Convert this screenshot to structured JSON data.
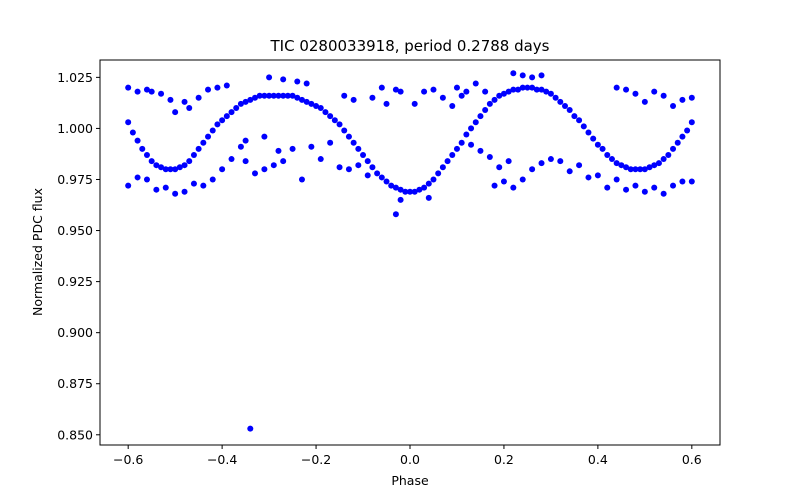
{
  "chart_data": {
    "type": "scatter",
    "title": "TIC 0280033918, period 0.2788 days",
    "xlabel": "Phase",
    "ylabel": "Normalized PDC flux",
    "xlim": [
      -0.66,
      0.66
    ],
    "ylim": [
      0.845,
      1.0335
    ],
    "grid": false,
    "x_ticks": [
      -0.6,
      -0.4,
      -0.2,
      0.0,
      0.2,
      0.4,
      0.6
    ],
    "x_tick_labels": [
      "−0.6",
      "−0.4",
      "−0.2",
      "0.0",
      "0.2",
      "0.4",
      "0.6"
    ],
    "y_ticks": [
      0.85,
      0.875,
      0.9,
      0.925,
      0.95,
      0.975,
      1.0,
      1.025
    ],
    "y_tick_labels": [
      "0.850",
      "0.875",
      "0.900",
      "0.925",
      "0.950",
      "0.975",
      "1.000",
      "1.025"
    ],
    "marker_color": "#0000ff",
    "series": [
      {
        "points": [
          [
            -0.6,
            1.003
          ],
          [
            -0.59,
            0.998
          ],
          [
            -0.58,
            0.994
          ],
          [
            -0.57,
            0.99
          ],
          [
            -0.56,
            0.987
          ],
          [
            -0.55,
            0.984
          ],
          [
            -0.54,
            0.982
          ],
          [
            -0.53,
            0.981
          ],
          [
            -0.52,
            0.98
          ],
          [
            -0.51,
            0.98
          ],
          [
            -0.5,
            0.98
          ],
          [
            -0.49,
            0.981
          ],
          [
            -0.48,
            0.982
          ],
          [
            -0.47,
            0.984
          ],
          [
            -0.46,
            0.987
          ],
          [
            -0.45,
            0.99
          ],
          [
            -0.44,
            0.993
          ],
          [
            -0.43,
            0.996
          ],
          [
            -0.42,
            0.999
          ],
          [
            -0.41,
            1.002
          ],
          [
            -0.4,
            1.004
          ],
          [
            -0.39,
            1.006
          ],
          [
            -0.38,
            1.008
          ],
          [
            -0.37,
            1.01
          ],
          [
            -0.36,
            1.012
          ],
          [
            -0.35,
            1.013
          ],
          [
            -0.34,
            1.014
          ],
          [
            -0.33,
            1.015
          ],
          [
            -0.32,
            1.016
          ],
          [
            -0.31,
            1.016
          ],
          [
            -0.3,
            1.016
          ],
          [
            -0.29,
            1.016
          ],
          [
            -0.28,
            1.016
          ],
          [
            -0.27,
            1.016
          ],
          [
            -0.26,
            1.016
          ],
          [
            -0.25,
            1.016
          ],
          [
            -0.24,
            1.015
          ],
          [
            -0.23,
            1.014
          ],
          [
            -0.22,
            1.013
          ],
          [
            -0.21,
            1.012
          ],
          [
            -0.2,
            1.011
          ],
          [
            -0.19,
            1.01
          ],
          [
            -0.18,
            1.008
          ],
          [
            -0.17,
            1.006
          ],
          [
            -0.16,
            1.004
          ],
          [
            -0.15,
            1.002
          ],
          [
            -0.14,
            0.999
          ],
          [
            -0.13,
            0.996
          ],
          [
            -0.12,
            0.993
          ],
          [
            -0.11,
            0.99
          ],
          [
            -0.1,
            0.987
          ],
          [
            -0.09,
            0.984
          ],
          [
            -0.08,
            0.981
          ],
          [
            -0.07,
            0.978
          ],
          [
            -0.06,
            0.976
          ],
          [
            -0.05,
            0.974
          ],
          [
            -0.04,
            0.972
          ],
          [
            -0.03,
            0.971
          ],
          [
            -0.02,
            0.97
          ],
          [
            -0.01,
            0.969
          ],
          [
            0.0,
            0.969
          ],
          [
            0.01,
            0.969
          ],
          [
            0.02,
            0.97
          ],
          [
            0.03,
            0.971
          ],
          [
            0.04,
            0.973
          ],
          [
            0.05,
            0.975
          ],
          [
            0.06,
            0.978
          ],
          [
            0.07,
            0.981
          ],
          [
            0.08,
            0.984
          ],
          [
            0.09,
            0.987
          ],
          [
            0.1,
            0.99
          ],
          [
            0.11,
            0.993
          ],
          [
            0.12,
            0.997
          ],
          [
            0.13,
            1.0
          ],
          [
            0.14,
            1.003
          ],
          [
            0.15,
            1.006
          ],
          [
            0.16,
            1.009
          ],
          [
            0.17,
            1.012
          ],
          [
            0.18,
            1.014
          ],
          [
            0.19,
            1.016
          ],
          [
            0.2,
            1.017
          ],
          [
            0.21,
            1.018
          ],
          [
            0.22,
            1.019
          ],
          [
            0.23,
            1.019
          ],
          [
            0.24,
            1.02
          ],
          [
            0.25,
            1.02
          ],
          [
            0.26,
            1.02
          ],
          [
            0.27,
            1.019
          ],
          [
            0.28,
            1.019
          ],
          [
            0.29,
            1.018
          ],
          [
            0.3,
            1.017
          ],
          [
            0.31,
            1.015
          ],
          [
            0.32,
            1.013
          ],
          [
            0.33,
            1.011
          ],
          [
            0.34,
            1.009
          ],
          [
            0.35,
            1.006
          ],
          [
            0.36,
            1.004
          ],
          [
            0.37,
            1.001
          ],
          [
            0.38,
            0.998
          ],
          [
            0.39,
            0.995
          ],
          [
            0.4,
            0.992
          ],
          [
            0.41,
            0.99
          ],
          [
            0.42,
            0.987
          ],
          [
            0.43,
            0.985
          ],
          [
            0.44,
            0.983
          ],
          [
            0.45,
            0.982
          ],
          [
            0.46,
            0.981
          ],
          [
            0.47,
            0.98
          ],
          [
            0.48,
            0.98
          ],
          [
            0.49,
            0.98
          ],
          [
            0.5,
            0.98
          ],
          [
            0.51,
            0.981
          ],
          [
            0.52,
            0.982
          ],
          [
            0.53,
            0.983
          ],
          [
            0.54,
            0.985
          ],
          [
            0.55,
            0.987
          ],
          [
            0.56,
            0.99
          ],
          [
            0.57,
            0.993
          ],
          [
            0.58,
            0.996
          ],
          [
            0.59,
            0.999
          ],
          [
            0.6,
            1.003
          ],
          [
            -0.6,
            1.02
          ],
          [
            -0.58,
            1.018
          ],
          [
            -0.56,
            1.019
          ],
          [
            -0.55,
            1.018
          ],
          [
            -0.53,
            1.017
          ],
          [
            -0.51,
            1.014
          ],
          [
            -0.5,
            1.008
          ],
          [
            -0.48,
            1.013
          ],
          [
            -0.47,
            1.01
          ],
          [
            -0.45,
            1.015
          ],
          [
            -0.43,
            1.019
          ],
          [
            -0.41,
            1.02
          ],
          [
            -0.39,
            1.021
          ],
          [
            -0.6,
            0.972
          ],
          [
            -0.58,
            0.976
          ],
          [
            -0.56,
            0.975
          ],
          [
            -0.54,
            0.97
          ],
          [
            -0.52,
            0.971
          ],
          [
            -0.5,
            0.968
          ],
          [
            -0.48,
            0.969
          ],
          [
            -0.46,
            0.973
          ],
          [
            -0.44,
            0.972
          ],
          [
            -0.42,
            0.975
          ],
          [
            -0.4,
            0.98
          ],
          [
            -0.38,
            0.985
          ],
          [
            -0.36,
            0.991
          ],
          [
            -0.35,
            0.984
          ],
          [
            -0.33,
            0.978
          ],
          [
            -0.31,
            0.98
          ],
          [
            -0.29,
            0.982
          ],
          [
            -0.27,
            0.984
          ],
          [
            -0.25,
            0.99
          ],
          [
            -0.23,
            0.975
          ],
          [
            -0.21,
            0.991
          ],
          [
            -0.19,
            0.985
          ],
          [
            -0.17,
            0.993
          ],
          [
            -0.15,
            0.981
          ],
          [
            -0.13,
            0.98
          ],
          [
            -0.11,
            0.982
          ],
          [
            -0.09,
            0.977
          ],
          [
            -0.08,
            1.015
          ],
          [
            -0.06,
            1.02
          ],
          [
            -0.05,
            1.012
          ],
          [
            -0.03,
            1.019
          ],
          [
            -0.02,
            1.018
          ],
          [
            0.01,
            1.012
          ],
          [
            0.03,
            1.018
          ],
          [
            0.05,
            1.019
          ],
          [
            0.07,
            1.015
          ],
          [
            0.09,
            1.011
          ],
          [
            0.1,
            1.02
          ],
          [
            0.11,
            1.016
          ],
          [
            0.12,
            1.018
          ],
          [
            0.14,
            1.022
          ],
          [
            0.16,
            1.018
          ],
          [
            0.18,
            0.972
          ],
          [
            0.2,
            0.974
          ],
          [
            0.22,
            0.971
          ],
          [
            0.24,
            0.975
          ],
          [
            0.26,
            0.98
          ],
          [
            0.28,
            0.983
          ],
          [
            0.3,
            0.985
          ],
          [
            0.32,
            0.984
          ],
          [
            0.34,
            0.979
          ],
          [
            0.36,
            0.982
          ],
          [
            0.38,
            0.976
          ],
          [
            0.4,
            0.977
          ],
          [
            0.42,
            0.971
          ],
          [
            0.44,
            0.975
          ],
          [
            0.46,
            0.97
          ],
          [
            0.48,
            0.972
          ],
          [
            0.5,
            0.969
          ],
          [
            0.52,
            0.971
          ],
          [
            0.54,
            0.968
          ],
          [
            0.56,
            0.972
          ],
          [
            0.58,
            0.974
          ],
          [
            0.6,
            0.974
          ],
          [
            0.44,
            1.02
          ],
          [
            0.46,
            1.019
          ],
          [
            0.48,
            1.017
          ],
          [
            0.5,
            1.013
          ],
          [
            0.52,
            1.018
          ],
          [
            0.54,
            1.016
          ],
          [
            0.56,
            1.011
          ],
          [
            0.58,
            1.014
          ],
          [
            0.6,
            1.015
          ],
          [
            -0.35,
            0.994
          ],
          [
            -0.31,
            0.996
          ],
          [
            -0.28,
            0.989
          ],
          [
            -0.14,
            1.016
          ],
          [
            -0.12,
            1.014
          ],
          [
            0.13,
            0.992
          ],
          [
            0.15,
            0.989
          ],
          [
            0.17,
            0.986
          ],
          [
            0.19,
            0.981
          ],
          [
            0.21,
            0.984
          ],
          [
            0.22,
            1.027
          ],
          [
            0.24,
            1.026
          ],
          [
            0.26,
            1.025
          ],
          [
            0.28,
            1.026
          ],
          [
            -0.3,
            1.025
          ],
          [
            -0.27,
            1.024
          ],
          [
            -0.24,
            1.023
          ],
          [
            -0.22,
            1.022
          ],
          [
            -0.02,
            0.965
          ],
          [
            -0.03,
            0.958
          ],
          [
            0.04,
            0.966
          ],
          [
            -0.34,
            0.853
          ]
        ]
      }
    ]
  }
}
